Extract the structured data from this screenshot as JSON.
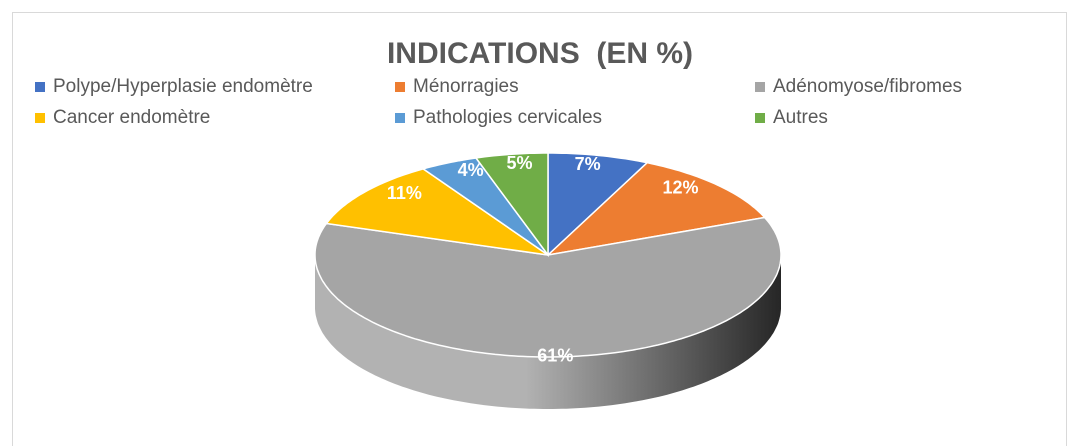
{
  "chart_data": {
    "type": "pie",
    "title": "INDICATIONS  (EN %)",
    "categories": [
      "Polype/Hyperplasie endomètre",
      "Ménorragies",
      "Adénomyose/fibromes",
      "Cancer endomètre",
      "Pathologies cervicales",
      "Autres"
    ],
    "values": [
      7,
      12,
      61,
      11,
      4,
      5
    ],
    "value_labels": [
      "7%",
      "12%",
      "61%",
      "11%",
      "4%",
      "5%"
    ],
    "colors": [
      "#4472c4",
      "#ed7d31",
      "#a5a5a5",
      "#ffc000",
      "#5b9bd5",
      "#70ad47"
    ],
    "legend": "top"
  }
}
